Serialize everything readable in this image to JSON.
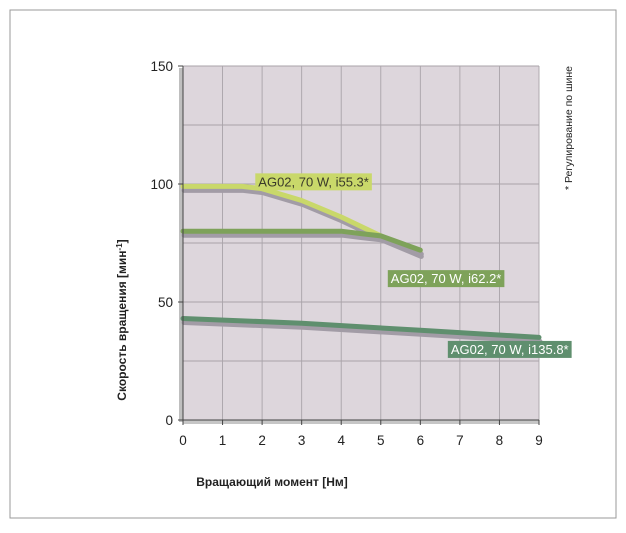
{
  "chart_data": {
    "type": "line",
    "xlabel": "Вращающий момент [Нм]",
    "ylabel_main": "Скорость вращения [мин",
    "ylabel_sup": "-1",
    "ylabel_tail": "]",
    "side_note": "* Регулирование по шине",
    "xlim": [
      0,
      9
    ],
    "ylim": [
      0,
      150
    ],
    "x_ticks": [
      "0",
      "1",
      "2",
      "3",
      "4",
      "5",
      "6",
      "7",
      "8",
      "9"
    ],
    "y_ticks": [
      "0",
      "50",
      "100",
      "150"
    ],
    "grid": true,
    "series": [
      {
        "name": "AG02, 70 W, i55.3*",
        "color": "#c9d86a",
        "x": [
          0,
          1,
          1.5,
          2,
          3,
          4,
          5,
          6
        ],
        "y": [
          99,
          99,
          99,
          98,
          93,
          86,
          78,
          71
        ]
      },
      {
        "name": "AG02, 70 W, i62.2*",
        "color": "#7ea25a",
        "x": [
          0,
          2,
          4,
          4.5,
          5,
          5.5,
          6
        ],
        "y": [
          80,
          80,
          80,
          79,
          78,
          75,
          72
        ]
      },
      {
        "name": "AG02, 70 W, i135.8*",
        "color": "#5f8f6e",
        "x": [
          0,
          3,
          6,
          9
        ],
        "y": [
          43,
          41,
          38,
          35
        ]
      }
    ]
  }
}
